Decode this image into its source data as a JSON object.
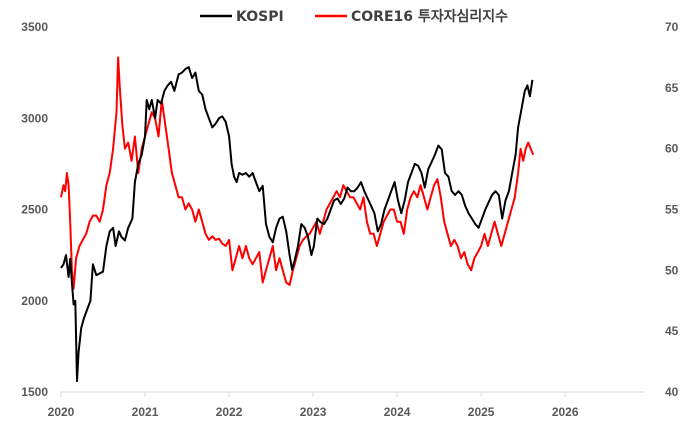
{
  "chart_data": {
    "type": "line",
    "title": "",
    "legend_position": "top",
    "grid": false,
    "x_axis": {
      "ticks": [
        "2020",
        "2021",
        "2022",
        "2023",
        "2024",
        "2025",
        "2026"
      ],
      "range": [
        2020.0,
        2026.95
      ]
    },
    "y_left": {
      "ticks": [
        "1500",
        "2000",
        "2500",
        "3000",
        "3500"
      ],
      "range": [
        1500,
        3500
      ]
    },
    "y_right": {
      "ticks": [
        "40",
        "45",
        "50",
        "55",
        "60",
        "65",
        "70"
      ],
      "range": [
        40,
        70
      ]
    },
    "series": [
      {
        "name": "KOSPI",
        "axis": "left",
        "color": "#000000",
        "points": [
          [
            2020.0,
            2180
          ],
          [
            2020.03,
            2200
          ],
          [
            2020.06,
            2250
          ],
          [
            2020.09,
            2130
          ],
          [
            2020.11,
            2230
          ],
          [
            2020.13,
            2100
          ],
          [
            2020.15,
            1980
          ],
          [
            2020.17,
            2000
          ],
          [
            2020.19,
            1560
          ],
          [
            2020.21,
            1720
          ],
          [
            2020.24,
            1850
          ],
          [
            2020.27,
            1900
          ],
          [
            2020.31,
            1950
          ],
          [
            2020.35,
            2000
          ],
          [
            2020.38,
            2200
          ],
          [
            2020.42,
            2140
          ],
          [
            2020.46,
            2150
          ],
          [
            2020.5,
            2160
          ],
          [
            2020.54,
            2300
          ],
          [
            2020.58,
            2380
          ],
          [
            2020.62,
            2400
          ],
          [
            2020.65,
            2300
          ],
          [
            2020.69,
            2380
          ],
          [
            2020.72,
            2350
          ],
          [
            2020.76,
            2330
          ],
          [
            2020.8,
            2400
          ],
          [
            2020.85,
            2450
          ],
          [
            2020.88,
            2650
          ],
          [
            2020.92,
            2750
          ],
          [
            2020.96,
            2800
          ],
          [
            2021.0,
            2900
          ],
          [
            2021.02,
            3100
          ],
          [
            2021.05,
            3050
          ],
          [
            2021.08,
            3100
          ],
          [
            2021.12,
            3000
          ],
          [
            2021.15,
            3100
          ],
          [
            2021.19,
            3080
          ],
          [
            2021.23,
            3150
          ],
          [
            2021.27,
            3180
          ],
          [
            2021.31,
            3200
          ],
          [
            2021.35,
            3150
          ],
          [
            2021.4,
            3240
          ],
          [
            2021.44,
            3250
          ],
          [
            2021.48,
            3270
          ],
          [
            2021.52,
            3280
          ],
          [
            2021.56,
            3220
          ],
          [
            2021.6,
            3250
          ],
          [
            2021.64,
            3150
          ],
          [
            2021.68,
            3130
          ],
          [
            2021.72,
            3050
          ],
          [
            2021.76,
            3000
          ],
          [
            2021.8,
            2950
          ],
          [
            2021.84,
            2970
          ],
          [
            2021.88,
            3000
          ],
          [
            2021.92,
            3010
          ],
          [
            2021.96,
            2980
          ],
          [
            2022.0,
            2900
          ],
          [
            2022.03,
            2750
          ],
          [
            2022.06,
            2680
          ],
          [
            2022.09,
            2650
          ],
          [
            2022.12,
            2700
          ],
          [
            2022.16,
            2690
          ],
          [
            2022.2,
            2700
          ],
          [
            2022.24,
            2680
          ],
          [
            2022.28,
            2700
          ],
          [
            2022.32,
            2650
          ],
          [
            2022.36,
            2600
          ],
          [
            2022.4,
            2630
          ],
          [
            2022.44,
            2420
          ],
          [
            2022.48,
            2350
          ],
          [
            2022.52,
            2320
          ],
          [
            2022.56,
            2400
          ],
          [
            2022.6,
            2450
          ],
          [
            2022.64,
            2460
          ],
          [
            2022.68,
            2380
          ],
          [
            2022.72,
            2250
          ],
          [
            2022.75,
            2170
          ],
          [
            2022.78,
            2220
          ],
          [
            2022.82,
            2300
          ],
          [
            2022.86,
            2420
          ],
          [
            2022.9,
            2400
          ],
          [
            2022.94,
            2350
          ],
          [
            2022.98,
            2250
          ],
          [
            2023.01,
            2300
          ],
          [
            2023.05,
            2450
          ],
          [
            2023.09,
            2430
          ],
          [
            2023.13,
            2420
          ],
          [
            2023.17,
            2450
          ],
          [
            2023.21,
            2500
          ],
          [
            2023.25,
            2550
          ],
          [
            2023.29,
            2560
          ],
          [
            2023.33,
            2530
          ],
          [
            2023.37,
            2560
          ],
          [
            2023.41,
            2620
          ],
          [
            2023.45,
            2600
          ],
          [
            2023.49,
            2600
          ],
          [
            2023.53,
            2620
          ],
          [
            2023.57,
            2650
          ],
          [
            2023.61,
            2600
          ],
          [
            2023.65,
            2560
          ],
          [
            2023.69,
            2520
          ],
          [
            2023.73,
            2480
          ],
          [
            2023.77,
            2380
          ],
          [
            2023.81,
            2420
          ],
          [
            2023.85,
            2500
          ],
          [
            2023.89,
            2550
          ],
          [
            2023.93,
            2600
          ],
          [
            2023.97,
            2650
          ],
          [
            2024.01,
            2550
          ],
          [
            2024.05,
            2480
          ],
          [
            2024.09,
            2550
          ],
          [
            2024.13,
            2650
          ],
          [
            2024.17,
            2700
          ],
          [
            2024.21,
            2750
          ],
          [
            2024.25,
            2740
          ],
          [
            2024.29,
            2700
          ],
          [
            2024.33,
            2620
          ],
          [
            2024.37,
            2720
          ],
          [
            2024.41,
            2760
          ],
          [
            2024.45,
            2800
          ],
          [
            2024.49,
            2850
          ],
          [
            2024.53,
            2830
          ],
          [
            2024.57,
            2700
          ],
          [
            2024.61,
            2680
          ],
          [
            2024.65,
            2600
          ],
          [
            2024.69,
            2580
          ],
          [
            2024.73,
            2600
          ],
          [
            2024.77,
            2580
          ],
          [
            2024.81,
            2520
          ],
          [
            2024.85,
            2480
          ],
          [
            2024.89,
            2450
          ],
          [
            2024.93,
            2420
          ],
          [
            2024.97,
            2400
          ],
          [
            2025.01,
            2450
          ],
          [
            2025.05,
            2500
          ],
          [
            2025.09,
            2540
          ],
          [
            2025.13,
            2580
          ],
          [
            2025.17,
            2600
          ],
          [
            2025.21,
            2580
          ],
          [
            2025.25,
            2450
          ],
          [
            2025.29,
            2550
          ],
          [
            2025.33,
            2600
          ],
          [
            2025.37,
            2700
          ],
          [
            2025.41,
            2800
          ],
          [
            2025.44,
            2950
          ],
          [
            2025.48,
            3050
          ],
          [
            2025.52,
            3150
          ],
          [
            2025.55,
            3180
          ],
          [
            2025.58,
            3120
          ],
          [
            2025.61,
            3210
          ]
        ]
      },
      {
        "name": "CORE16 투자자심리지수",
        "axis": "right",
        "color": "#ff0000",
        "points": [
          [
            2020.0,
            56
          ],
          [
            2020.03,
            57
          ],
          [
            2020.05,
            56.5
          ],
          [
            2020.07,
            58
          ],
          [
            2020.09,
            57
          ],
          [
            2020.11,
            54
          ],
          [
            2020.13,
            50
          ],
          [
            2020.15,
            48.5
          ],
          [
            2020.18,
            51
          ],
          [
            2020.22,
            52
          ],
          [
            2020.26,
            52.5
          ],
          [
            2020.3,
            53
          ],
          [
            2020.34,
            54
          ],
          [
            2020.38,
            54.5
          ],
          [
            2020.42,
            54.5
          ],
          [
            2020.46,
            54
          ],
          [
            2020.5,
            55
          ],
          [
            2020.54,
            57
          ],
          [
            2020.58,
            58
          ],
          [
            2020.62,
            60
          ],
          [
            2020.66,
            63
          ],
          [
            2020.68,
            67.5
          ],
          [
            2020.7,
            65
          ],
          [
            2020.73,
            62
          ],
          [
            2020.76,
            60
          ],
          [
            2020.8,
            60.5
          ],
          [
            2020.84,
            59
          ],
          [
            2020.88,
            61
          ],
          [
            2020.92,
            58
          ],
          [
            2020.96,
            60
          ],
          [
            2021.0,
            61
          ],
          [
            2021.04,
            62
          ],
          [
            2021.08,
            63
          ],
          [
            2021.12,
            62.5
          ],
          [
            2021.16,
            61
          ],
          [
            2021.2,
            64
          ],
          [
            2021.24,
            62
          ],
          [
            2021.28,
            60
          ],
          [
            2021.32,
            58
          ],
          [
            2021.36,
            57
          ],
          [
            2021.4,
            56
          ],
          [
            2021.44,
            56
          ],
          [
            2021.48,
            55
          ],
          [
            2021.52,
            55.5
          ],
          [
            2021.56,
            55
          ],
          [
            2021.6,
            54
          ],
          [
            2021.64,
            55
          ],
          [
            2021.68,
            54
          ],
          [
            2021.72,
            53
          ],
          [
            2021.76,
            52.5
          ],
          [
            2021.8,
            52.8
          ],
          [
            2021.84,
            52.5
          ],
          [
            2021.88,
            52.6
          ],
          [
            2021.92,
            52.2
          ],
          [
            2021.96,
            52
          ],
          [
            2022.0,
            52.5
          ],
          [
            2022.04,
            50
          ],
          [
            2022.08,
            51
          ],
          [
            2022.12,
            52
          ],
          [
            2022.16,
            51
          ],
          [
            2022.2,
            52
          ],
          [
            2022.24,
            51
          ],
          [
            2022.28,
            50.5
          ],
          [
            2022.32,
            51
          ],
          [
            2022.36,
            51.5
          ],
          [
            2022.4,
            49
          ],
          [
            2022.44,
            50
          ],
          [
            2022.48,
            51
          ],
          [
            2022.52,
            52
          ],
          [
            2022.56,
            50
          ],
          [
            2022.6,
            51
          ],
          [
            2022.64,
            50
          ],
          [
            2022.68,
            49
          ],
          [
            2022.72,
            48.8
          ],
          [
            2022.76,
            50
          ],
          [
            2022.8,
            51
          ],
          [
            2022.84,
            52
          ],
          [
            2022.88,
            52.5
          ],
          [
            2022.92,
            52.8
          ],
          [
            2022.96,
            53
          ],
          [
            2023.0,
            53.5
          ],
          [
            2023.04,
            54
          ],
          [
            2023.08,
            53
          ],
          [
            2023.12,
            54
          ],
          [
            2023.16,
            55
          ],
          [
            2023.2,
            55.5
          ],
          [
            2023.24,
            56
          ],
          [
            2023.28,
            56.5
          ],
          [
            2023.32,
            56
          ],
          [
            2023.36,
            57
          ],
          [
            2023.4,
            56.5
          ],
          [
            2023.44,
            56
          ],
          [
            2023.48,
            56
          ],
          [
            2023.52,
            55.5
          ],
          [
            2023.56,
            55
          ],
          [
            2023.6,
            56
          ],
          [
            2023.64,
            54
          ],
          [
            2023.68,
            53
          ],
          [
            2023.72,
            53
          ],
          [
            2023.76,
            52
          ],
          [
            2023.8,
            53
          ],
          [
            2023.84,
            54
          ],
          [
            2023.88,
            54.5
          ],
          [
            2023.92,
            55
          ],
          [
            2023.96,
            55
          ],
          [
            2024.0,
            54
          ],
          [
            2024.04,
            54
          ],
          [
            2024.08,
            53
          ],
          [
            2024.12,
            55
          ],
          [
            2024.16,
            56
          ],
          [
            2024.2,
            56.5
          ],
          [
            2024.24,
            56
          ],
          [
            2024.28,
            57
          ],
          [
            2024.32,
            56
          ],
          [
            2024.36,
            55
          ],
          [
            2024.4,
            56
          ],
          [
            2024.44,
            57
          ],
          [
            2024.48,
            57.5
          ],
          [
            2024.52,
            56
          ],
          [
            2024.56,
            54
          ],
          [
            2024.6,
            53
          ],
          [
            2024.64,
            52
          ],
          [
            2024.68,
            52.5
          ],
          [
            2024.72,
            52
          ],
          [
            2024.76,
            51
          ],
          [
            2024.8,
            51.5
          ],
          [
            2024.84,
            50.5
          ],
          [
            2024.88,
            50
          ],
          [
            2024.92,
            51
          ],
          [
            2024.96,
            51.5
          ],
          [
            2025.0,
            52
          ],
          [
            2025.04,
            53
          ],
          [
            2025.08,
            52
          ],
          [
            2025.12,
            53
          ],
          [
            2025.16,
            54
          ],
          [
            2025.2,
            53
          ],
          [
            2025.24,
            52
          ],
          [
            2025.28,
            53
          ],
          [
            2025.32,
            54
          ],
          [
            2025.36,
            55
          ],
          [
            2025.4,
            56
          ],
          [
            2025.44,
            58
          ],
          [
            2025.47,
            60
          ],
          [
            2025.5,
            59
          ],
          [
            2025.53,
            60
          ],
          [
            2025.56,
            60.5
          ],
          [
            2025.59,
            60
          ],
          [
            2025.62,
            59.5
          ]
        ]
      }
    ]
  }
}
